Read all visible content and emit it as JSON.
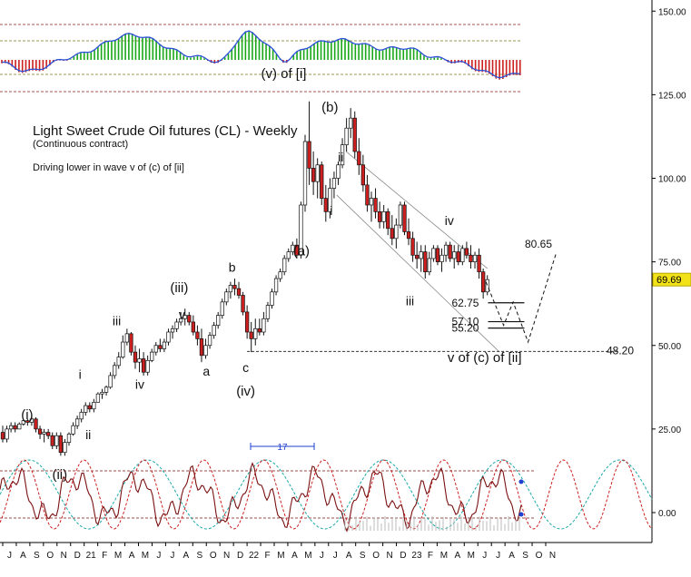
{
  "chart_data": {
    "type": "candlestick",
    "title": "Light Sweet Crude Oil futures (CL) - Weekly",
    "subtitle": "(Continuous contract)",
    "note": "Driving lower in wave v of (c) of [ii]",
    "y_axis": {
      "ylim": [
        -4,
        158
      ],
      "tick_values": [
        0,
        25,
        50,
        75,
        100,
        125,
        150
      ],
      "tick_labels": [
        "0.00",
        "25.00",
        "50.00",
        "75.00",
        "100.00",
        "125.00",
        "150.00"
      ],
      "position": "right"
    },
    "x_axis": {
      "tick_labels": [
        "J",
        "A",
        "S",
        "O",
        "N",
        "D",
        "21",
        "F",
        "M",
        "A",
        "M",
        "J",
        "J",
        "A",
        "S",
        "O",
        "N",
        "D",
        "22",
        "F",
        "M",
        "A",
        "M",
        "J",
        "J",
        "A",
        "S",
        "O",
        "N",
        "D",
        "23",
        "F",
        "M",
        "A",
        "M",
        "J",
        "J",
        "A",
        "S",
        "O",
        "N"
      ]
    },
    "current_price": {
      "value": 69.69,
      "label": "69.69",
      "color": "#f2e21a"
    },
    "levels": [
      {
        "value": 80.65,
        "label": "80.65"
      },
      {
        "value": 62.75,
        "label": "62.75"
      },
      {
        "value": 57.1,
        "label": "57.10"
      },
      {
        "value": 55.2,
        "label": "55.20"
      },
      {
        "value": 48.2,
        "label": "48.20"
      }
    ],
    "wave_labels": [
      {
        "text": "(i)",
        "month": 1.8,
        "value": 28
      },
      {
        "text": "(ii)",
        "month": 4.2,
        "value": 10
      },
      {
        "text": "i",
        "month": 5.7,
        "value": 40
      },
      {
        "text": "ii",
        "month": 6.3,
        "value": 22
      },
      {
        "text": "iii",
        "month": 8.4,
        "value": 56
      },
      {
        "text": "iv",
        "month": 10.1,
        "value": 37
      },
      {
        "text": "(iii)",
        "month": 13.0,
        "value": 66
      },
      {
        "text": "v",
        "month": 13.2,
        "value": 58
      },
      {
        "text": "a",
        "month": 15.0,
        "value": 41
      },
      {
        "text": "b",
        "month": 16.9,
        "value": 72
      },
      {
        "text": "c",
        "month": 17.9,
        "value": 42
      },
      {
        "text": "(iv)",
        "month": 17.9,
        "value": 35
      },
      {
        "text": "(v) of [i]",
        "month": 20.7,
        "value": 130
      },
      {
        "text": "(a)",
        "month": 22.0,
        "value": 77
      },
      {
        "text": "(b)",
        "month": 24.1,
        "value": 120
      },
      {
        "text": "ii",
        "month": 24.9,
        "value": 105
      },
      {
        "text": "i",
        "month": 24.2,
        "value": 89
      },
      {
        "text": "iii",
        "month": 30.0,
        "value": 62
      },
      {
        "text": "iv",
        "month": 32.9,
        "value": 86
      },
      {
        "text": "v of (c) of [ii]",
        "month": 35.5,
        "value": 45
      }
    ],
    "cycle_marker": {
      "label": "17"
    },
    "candles": [
      {
        "o": 24,
        "h": 26,
        "l": 21,
        "c": 22
      },
      {
        "o": 22,
        "h": 26,
        "l": 21,
        "c": 25
      },
      {
        "o": 25,
        "h": 27,
        "l": 24,
        "c": 26
      },
      {
        "o": 26,
        "h": 27,
        "l": 24,
        "c": 25
      },
      {
        "o": 25,
        "h": 27,
        "l": 25,
        "c": 26.5
      },
      {
        "o": 26.5,
        "h": 28,
        "l": 26,
        "c": 27.5
      },
      {
        "o": 27.5,
        "h": 28,
        "l": 26,
        "c": 27
      },
      {
        "o": 27,
        "h": 29,
        "l": 26,
        "c": 28
      },
      {
        "o": 28,
        "h": 28.5,
        "l": 24,
        "c": 25
      },
      {
        "o": 25,
        "h": 26,
        "l": 22,
        "c": 23.5
      },
      {
        "o": 23.5,
        "h": 25,
        "l": 21,
        "c": 24
      },
      {
        "o": 24,
        "h": 25,
        "l": 22,
        "c": 23
      },
      {
        "o": 23,
        "h": 24,
        "l": 19,
        "c": 20
      },
      {
        "o": 20,
        "h": 24,
        "l": 19,
        "c": 23
      },
      {
        "o": 23,
        "h": 24,
        "l": 17,
        "c": 18
      },
      {
        "o": 18,
        "h": 22,
        "l": 17,
        "c": 21
      },
      {
        "o": 21,
        "h": 24,
        "l": 20,
        "c": 23.5
      },
      {
        "o": 23.5,
        "h": 27,
        "l": 23,
        "c": 26
      },
      {
        "o": 26,
        "h": 29,
        "l": 25,
        "c": 28
      },
      {
        "o": 28,
        "h": 31,
        "l": 27,
        "c": 30
      },
      {
        "o": 30,
        "h": 33,
        "l": 29,
        "c": 32
      },
      {
        "o": 32,
        "h": 33,
        "l": 30,
        "c": 31
      },
      {
        "o": 31,
        "h": 34,
        "l": 30,
        "c": 33
      },
      {
        "o": 33,
        "h": 36,
        "l": 33,
        "c": 35.5
      },
      {
        "o": 35.5,
        "h": 37,
        "l": 34,
        "c": 36
      },
      {
        "o": 36,
        "h": 38,
        "l": 35,
        "c": 37.5
      },
      {
        "o": 37.5,
        "h": 42,
        "l": 37,
        "c": 41
      },
      {
        "o": 41,
        "h": 45,
        "l": 40,
        "c": 44
      },
      {
        "o": 44,
        "h": 48,
        "l": 43,
        "c": 46.5
      },
      {
        "o": 46.5,
        "h": 53,
        "l": 46,
        "c": 51
      },
      {
        "o": 51,
        "h": 55,
        "l": 50,
        "c": 53.5
      },
      {
        "o": 53.5,
        "h": 54,
        "l": 47,
        "c": 48
      },
      {
        "o": 48,
        "h": 50,
        "l": 43,
        "c": 45
      },
      {
        "o": 45,
        "h": 49,
        "l": 42,
        "c": 46
      },
      {
        "o": 46,
        "h": 48,
        "l": 41,
        "c": 42
      },
      {
        "o": 42,
        "h": 47,
        "l": 41,
        "c": 45.5
      },
      {
        "o": 45.5,
        "h": 49,
        "l": 45,
        "c": 48
      },
      {
        "o": 48,
        "h": 51,
        "l": 47,
        "c": 50
      },
      {
        "o": 50,
        "h": 52,
        "l": 48,
        "c": 49
      },
      {
        "o": 49,
        "h": 52,
        "l": 48,
        "c": 51
      },
      {
        "o": 51,
        "h": 55,
        "l": 50,
        "c": 54
      },
      {
        "o": 54,
        "h": 56,
        "l": 52,
        "c": 55
      },
      {
        "o": 55,
        "h": 58,
        "l": 54,
        "c": 57
      },
      {
        "o": 57,
        "h": 60,
        "l": 56,
        "c": 58
      },
      {
        "o": 58,
        "h": 61,
        "l": 56,
        "c": 59
      },
      {
        "o": 59,
        "h": 60,
        "l": 56,
        "c": 57
      },
      {
        "o": 57,
        "h": 59,
        "l": 53,
        "c": 54
      },
      {
        "o": 54,
        "h": 56,
        "l": 50,
        "c": 52
      },
      {
        "o": 52,
        "h": 55,
        "l": 45,
        "c": 47
      },
      {
        "o": 47,
        "h": 52,
        "l": 46,
        "c": 50
      },
      {
        "o": 50,
        "h": 54,
        "l": 49,
        "c": 53
      },
      {
        "o": 53,
        "h": 57,
        "l": 52,
        "c": 56
      },
      {
        "o": 56,
        "h": 60,
        "l": 55,
        "c": 59
      },
      {
        "o": 59,
        "h": 64,
        "l": 58,
        "c": 63
      },
      {
        "o": 63,
        "h": 67,
        "l": 62,
        "c": 66
      },
      {
        "o": 66,
        "h": 69,
        "l": 64,
        "c": 68
      },
      {
        "o": 68,
        "h": 70,
        "l": 65,
        "c": 67
      },
      {
        "o": 67,
        "h": 69,
        "l": 64,
        "c": 65
      },
      {
        "o": 65,
        "h": 66,
        "l": 59,
        "c": 60
      },
      {
        "o": 60,
        "h": 62,
        "l": 52,
        "c": 54
      },
      {
        "o": 54,
        "h": 57,
        "l": 48,
        "c": 52
      },
      {
        "o": 52,
        "h": 58,
        "l": 50,
        "c": 55
      },
      {
        "o": 55,
        "h": 58,
        "l": 53,
        "c": 54
      },
      {
        "o": 54,
        "h": 60,
        "l": 53,
        "c": 58
      },
      {
        "o": 58,
        "h": 63,
        "l": 57,
        "c": 62
      },
      {
        "o": 62,
        "h": 67,
        "l": 61,
        "c": 66
      },
      {
        "o": 66,
        "h": 71,
        "l": 65,
        "c": 70
      },
      {
        "o": 70,
        "h": 73,
        "l": 69,
        "c": 72
      },
      {
        "o": 72,
        "h": 77,
        "l": 71,
        "c": 76
      },
      {
        "o": 76,
        "h": 79,
        "l": 75,
        "c": 78
      },
      {
        "o": 78,
        "h": 81,
        "l": 77,
        "c": 80
      },
      {
        "o": 80,
        "h": 82,
        "l": 76,
        "c": 77
      },
      {
        "o": 77,
        "h": 93,
        "l": 76,
        "c": 92
      },
      {
        "o": 92,
        "h": 113,
        "l": 90,
        "c": 111
      },
      {
        "o": 111,
        "h": 123,
        "l": 98,
        "c": 103
      },
      {
        "o": 103,
        "h": 108,
        "l": 95,
        "c": 99
      },
      {
        "o": 99,
        "h": 106,
        "l": 94,
        "c": 104
      },
      {
        "o": 104,
        "h": 105,
        "l": 92,
        "c": 94
      },
      {
        "o": 94,
        "h": 98,
        "l": 87,
        "c": 90
      },
      {
        "o": 90,
        "h": 100,
        "l": 88,
        "c": 97
      },
      {
        "o": 97,
        "h": 102,
        "l": 94,
        "c": 100
      },
      {
        "o": 100,
        "h": 105,
        "l": 98,
        "c": 104
      },
      {
        "o": 104,
        "h": 112,
        "l": 103,
        "c": 110
      },
      {
        "o": 110,
        "h": 118,
        "l": 108,
        "c": 115
      },
      {
        "o": 115,
        "h": 121,
        "l": 112,
        "c": 118
      },
      {
        "o": 118,
        "h": 120,
        "l": 106,
        "c": 108
      },
      {
        "o": 108,
        "h": 112,
        "l": 101,
        "c": 104
      },
      {
        "o": 104,
        "h": 107,
        "l": 96,
        "c": 98
      },
      {
        "o": 98,
        "h": 101,
        "l": 90,
        "c": 92
      },
      {
        "o": 92,
        "h": 96,
        "l": 87,
        "c": 94
      },
      {
        "o": 94,
        "h": 97,
        "l": 88,
        "c": 90
      },
      {
        "o": 90,
        "h": 93,
        "l": 85,
        "c": 87
      },
      {
        "o": 87,
        "h": 92,
        "l": 85,
        "c": 90
      },
      {
        "o": 90,
        "h": 91,
        "l": 83,
        "c": 85
      },
      {
        "o": 85,
        "h": 89,
        "l": 80,
        "c": 82
      },
      {
        "o": 82,
        "h": 88,
        "l": 79,
        "c": 86
      },
      {
        "o": 86,
        "h": 93,
        "l": 85,
        "c": 92
      },
      {
        "o": 92,
        "h": 93,
        "l": 83,
        "c": 84
      },
      {
        "o": 84,
        "h": 88,
        "l": 80,
        "c": 82
      },
      {
        "o": 82,
        "h": 84,
        "l": 75,
        "c": 77
      },
      {
        "o": 77,
        "h": 81,
        "l": 73,
        "c": 76
      },
      {
        "o": 76,
        "h": 80,
        "l": 72,
        "c": 78
      },
      {
        "o": 78,
        "h": 80,
        "l": 70,
        "c": 72
      },
      {
        "o": 72,
        "h": 78,
        "l": 71,
        "c": 76
      },
      {
        "o": 76,
        "h": 80,
        "l": 75,
        "c": 79
      },
      {
        "o": 79,
        "h": 80,
        "l": 74,
        "c": 75
      },
      {
        "o": 75,
        "h": 79,
        "l": 72,
        "c": 77
      },
      {
        "o": 77,
        "h": 81,
        "l": 75,
        "c": 80
      },
      {
        "o": 80,
        "h": 81,
        "l": 75,
        "c": 76
      },
      {
        "o": 76,
        "h": 80,
        "l": 73,
        "c": 78
      },
      {
        "o": 78,
        "h": 80,
        "l": 74,
        "c": 75
      },
      {
        "o": 75,
        "h": 80,
        "l": 74,
        "c": 79
      },
      {
        "o": 79,
        "h": 81,
        "l": 76,
        "c": 77
      },
      {
        "o": 77,
        "h": 80,
        "l": 73,
        "c": 75
      },
      {
        "o": 75,
        "h": 78,
        "l": 73,
        "c": 77
      },
      {
        "o": 77,
        "h": 79,
        "l": 70,
        "c": 72
      },
      {
        "o": 72,
        "h": 73,
        "l": 64,
        "c": 66
      },
      {
        "o": 66,
        "h": 71,
        "l": 65,
        "c": 69.69
      }
    ],
    "projection": [
      {
        "month": 35.6,
        "value": 69
      },
      {
        "month": 36.9,
        "value": 56
      },
      {
        "month": 37.6,
        "value": 63
      },
      {
        "month": 38.7,
        "value": 51
      },
      {
        "month": 40.8,
        "value": 78
      }
    ],
    "upper_panel": {
      "type": "histogram-oscillator",
      "colors": {
        "positive": "#1aa81a",
        "negative": "#cc2020",
        "line": "#2a4fd6"
      }
    },
    "lower_panel": {
      "type": "cycle-oscillator",
      "colors": {
        "dark": "#7a1010",
        "cyan": "#1aa8a8",
        "red": "#cc2020"
      }
    }
  }
}
